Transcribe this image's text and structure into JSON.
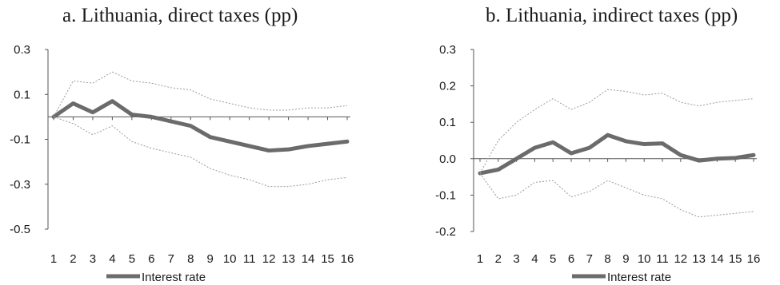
{
  "chart_data": [
    {
      "type": "line",
      "title": "a. Lithuania, direct taxes (pp)",
      "x": [
        1,
        2,
        3,
        4,
        5,
        6,
        7,
        8,
        9,
        10,
        11,
        12,
        13,
        14,
        15,
        16
      ],
      "yticks": [
        "0.3",
        "0.1",
        "-0.1",
        "-0.3",
        "-0.5"
      ],
      "ylim": [
        -0.5,
        0.3
      ],
      "series": [
        {
          "name": "Interest rate",
          "values": [
            0.0,
            0.06,
            0.02,
            0.07,
            0.01,
            0.0,
            -0.02,
            -0.04,
            -0.09,
            -0.11,
            -0.13,
            -0.15,
            -0.145,
            -0.13,
            -0.12,
            -0.11
          ]
        },
        {
          "values": [
            0.0,
            0.16,
            0.15,
            0.2,
            0.16,
            0.15,
            0.13,
            0.12,
            0.08,
            0.06,
            0.04,
            0.03,
            0.03,
            0.04,
            0.04,
            0.05
          ]
        },
        {
          "values": [
            0.0,
            -0.03,
            -0.08,
            -0.04,
            -0.11,
            -0.14,
            -0.16,
            -0.18,
            -0.23,
            -0.26,
            -0.28,
            -0.31,
            -0.31,
            -0.3,
            -0.28,
            -0.27
          ]
        }
      ],
      "legend": "Interest rate",
      "legend_position": "bottom"
    },
    {
      "type": "line",
      "title": "b. Lithuania, indirect taxes (pp)",
      "x": [
        1,
        2,
        3,
        4,
        5,
        6,
        7,
        8,
        9,
        10,
        11,
        12,
        13,
        14,
        15,
        16
      ],
      "yticks": [
        "0.3",
        "0.2",
        "0.1",
        "0.0",
        "-0.1",
        "-0.2"
      ],
      "ylim": [
        -0.2,
        0.3
      ],
      "series": [
        {
          "name": "Interest rate",
          "values": [
            -0.04,
            -0.03,
            0.0,
            0.03,
            0.045,
            0.015,
            0.03,
            0.065,
            0.048,
            0.04,
            0.042,
            0.01,
            -0.005,
            0.0,
            0.002,
            0.01
          ]
        },
        {
          "values": [
            -0.04,
            0.05,
            0.1,
            0.135,
            0.165,
            0.135,
            0.155,
            0.19,
            0.185,
            0.175,
            0.18,
            0.155,
            0.145,
            0.155,
            0.16,
            0.165
          ]
        },
        {
          "values": [
            -0.04,
            -0.11,
            -0.1,
            -0.065,
            -0.06,
            -0.105,
            -0.09,
            -0.06,
            -0.08,
            -0.1,
            -0.11,
            -0.14,
            -0.16,
            -0.155,
            -0.15,
            -0.145
          ]
        }
      ],
      "legend": "Interest rate",
      "legend_position": "bottom"
    }
  ]
}
